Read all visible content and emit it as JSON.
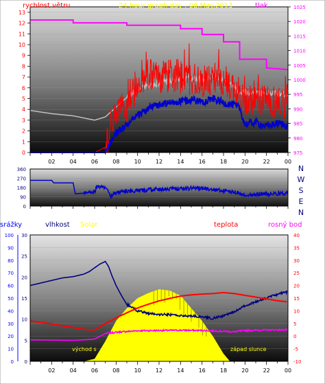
{
  "chart_data": [
    {
      "type": "line",
      "title": "24 hour graph day : 08.May.2013",
      "left_axis_label": "rychlost větru",
      "right_axis_label": "tlak",
      "x_ticks": [
        "02",
        "04",
        "06",
        "08",
        "10",
        "12",
        "14",
        "16",
        "18",
        "20",
        "22",
        "00"
      ],
      "y_left_ticks": [
        "0",
        "1",
        "2",
        "3",
        "4",
        "5",
        "6",
        "7",
        "8",
        "9",
        "10",
        "11",
        "12",
        "13"
      ],
      "y_left_range": [
        0,
        13.5
      ],
      "y_right_ticks": [
        "975",
        "980",
        "985",
        "990",
        "995",
        "1000",
        "1005",
        "1010",
        "1015",
        "1020",
        "1025"
      ],
      "y_right_range": [
        975,
        1025
      ],
      "colors": {
        "pressure": "#ff00ff",
        "gust": "#ff0000",
        "wind_avg": "#0000cc",
        "temp_grey": "#c0c0c0",
        "left_axis": "#ff0000",
        "right_axis": "#ff00ff",
        "title": "#ffff00"
      },
      "series": [
        {
          "key": "pressure",
          "x": [
            0,
            4,
            4,
            9,
            9,
            14,
            14,
            16,
            16,
            18,
            18,
            19.5,
            19.5,
            22,
            22,
            24
          ],
          "y": [
            1020.5,
            1020.5,
            1019.5,
            1019.5,
            1018.7,
            1018.7,
            1017.5,
            1017.5,
            1015.5,
            1015.5,
            1013,
            1013,
            1007,
            1007,
            1004,
            1003.5
          ]
        },
        {
          "key": "temp_grey",
          "x": [
            0,
            2,
            4,
            5,
            6,
            7,
            8,
            9,
            10,
            11,
            12,
            13,
            14,
            15,
            16,
            17,
            18,
            19,
            19.5,
            20,
            22,
            24
          ],
          "y": [
            3.9,
            3.6,
            3.4,
            3.2,
            3.0,
            3.3,
            4.2,
            5.1,
            5.8,
            6.2,
            6.5,
            6.6,
            6.8,
            6.9,
            6.8,
            7.1,
            6.7,
            6.0,
            5.5,
            5.6,
            5.5,
            5.4
          ]
        },
        {
          "key": "gust",
          "x": [
            0,
            6,
            7,
            7.5,
            8,
            9,
            10,
            11,
            12,
            13,
            14,
            15,
            16,
            17,
            18,
            19,
            19.5,
            20,
            21,
            22,
            23,
            24
          ],
          "y": [
            0,
            0,
            0.5,
            2.5,
            3.5,
            4.2,
            6.5,
            7.4,
            6.9,
            7.2,
            7.0,
            6.8,
            6.5,
            6.9,
            6.6,
            5.9,
            5.3,
            4.9,
            4.7,
            5.0,
            4.6,
            4.8
          ]
        },
        {
          "key": "wind_avg",
          "x": [
            0,
            6.5,
            7,
            7.5,
            8,
            8.5,
            9,
            10,
            11,
            12,
            13,
            14,
            15,
            16,
            17,
            18,
            19,
            19.5,
            20,
            21,
            22,
            23,
            24
          ],
          "y": [
            0,
            0,
            0,
            1.0,
            1.8,
            2.2,
            2.5,
            3.4,
            4.1,
            4.4,
            4.6,
            4.7,
            4.9,
            4.7,
            5.0,
            4.6,
            4.4,
            4.1,
            2.6,
            2.8,
            2.4,
            2.7,
            2.5
          ]
        }
      ]
    },
    {
      "type": "line",
      "title": "",
      "left_axis_label": "",
      "x_ticks": [
        "02",
        "04",
        "06",
        "08",
        "10",
        "12",
        "14",
        "16",
        "18",
        "20",
        "22",
        "00"
      ],
      "y_left_ticks": [
        "0",
        "90",
        "180",
        "270",
        "360"
      ],
      "y_left_range": [
        0,
        360
      ],
      "right_labels": [
        "N",
        "W",
        "S",
        "E",
        "N"
      ],
      "colors": {
        "direction": "#0000cc",
        "right_labels": "#000080"
      },
      "series": [
        {
          "key": "direction",
          "x": [
            0,
            2,
            2.2,
            4,
            4.2,
            5,
            5.4,
            6,
            6.2,
            7,
            7.5,
            8,
            9,
            10,
            12,
            14,
            16,
            17,
            18,
            19,
            20,
            22,
            24
          ],
          "y": [
            250,
            250,
            225,
            225,
            120,
            125,
            140,
            140,
            185,
            185,
            95,
            130,
            145,
            150,
            165,
            170,
            175,
            160,
            150,
            140,
            105,
            120,
            125
          ]
        }
      ]
    },
    {
      "type": "line",
      "labels": {
        "rain": "srážky",
        "humidity": "vlhkost",
        "solar": "Solar",
        "temperature": "teplota",
        "dewpoint": "rosný bod"
      },
      "annotations": {
        "sunrise": "východ s",
        "sunset": "západ slunce"
      },
      "x_ticks": [
        "02",
        "04",
        "06",
        "08",
        "10",
        "12",
        "14",
        "16",
        "18",
        "20",
        "22",
        "00"
      ],
      "y_rain_ticks": [
        "0",
        "10",
        "20",
        "30",
        "40",
        "50",
        "60",
        "70",
        "80",
        "90",
        "100"
      ],
      "y_rain_range": [
        0,
        100
      ],
      "y_humidity_ticks": [
        "0",
        "5",
        "10",
        "15",
        "20",
        "25",
        "30"
      ],
      "y_humidity_range": [
        0,
        30
      ],
      "y_right_ticks": [
        "-10",
        "-5",
        "0",
        "5",
        "10",
        "15",
        "20",
        "25",
        "30",
        "35",
        "40"
      ],
      "y_right_range": [
        -10,
        40
      ],
      "colors": {
        "rain": "#0000ff",
        "humidity": "#000080",
        "solar": "#ffff00",
        "temperature": "#ff0000",
        "dewpoint": "#ff00ff",
        "rain_axis": "#0000ff",
        "humidity_axis": "#000080",
        "right_axis": "#ff0000"
      },
      "series": [
        {
          "key": "humidity_line",
          "scale": "rain",
          "x": [
            0,
            1,
            2,
            3,
            4,
            5,
            5.5,
            6,
            6.5,
            7,
            7.3,
            7.6,
            8,
            8.5,
            9,
            10,
            11,
            12,
            13,
            14,
            15,
            16,
            17,
            18,
            19,
            20,
            21,
            22,
            23,
            24
          ],
          "y": [
            60,
            62,
            64,
            66,
            67,
            69,
            71,
            74,
            77,
            79,
            75,
            68,
            60,
            52,
            45,
            40,
            38,
            37,
            37,
            36,
            36,
            35,
            34,
            36,
            39,
            44,
            47,
            50,
            53,
            55
          ]
        },
        {
          "key": "temperature",
          "scale": "right",
          "x": [
            0,
            1,
            2,
            3,
            4,
            5,
            6,
            7,
            8,
            9,
            10,
            11,
            12,
            13,
            14,
            15,
            16,
            17,
            18,
            19,
            20,
            21,
            22,
            23,
            24
          ],
          "y": [
            6,
            5.4,
            4.8,
            4.1,
            3.4,
            2.6,
            2.4,
            4.9,
            7.2,
            9.2,
            11.1,
            12.6,
            13.9,
            14.9,
            15.8,
            16.3,
            16.6,
            16.8,
            17.2,
            16.8,
            16.1,
            15.4,
            14.7,
            14.0,
            13.5
          ]
        },
        {
          "key": "dewpoint",
          "scale": "right",
          "x": [
            0,
            2,
            4,
            5,
            6,
            7,
            8,
            9,
            10,
            12,
            14,
            16,
            18,
            19,
            20,
            22,
            24
          ],
          "y": [
            -1.5,
            -1.6,
            -1.7,
            -1.5,
            -1.2,
            1.0,
            1.5,
            1.8,
            2.1,
            2.2,
            2.3,
            2.2,
            1.9,
            1.7,
            2.2,
            2.4,
            2.5
          ]
        },
        {
          "key": "solar",
          "scale": "right",
          "x": [
            5,
            6,
            7,
            8,
            9,
            10,
            11,
            12,
            13,
            14,
            15,
            16,
            17,
            18,
            18.6
          ],
          "y": [
            -10,
            -9,
            -2,
            6,
            11,
            15,
            17,
            18.5,
            18,
            16,
            11,
            6,
            0,
            -7,
            -10
          ]
        }
      ]
    }
  ]
}
